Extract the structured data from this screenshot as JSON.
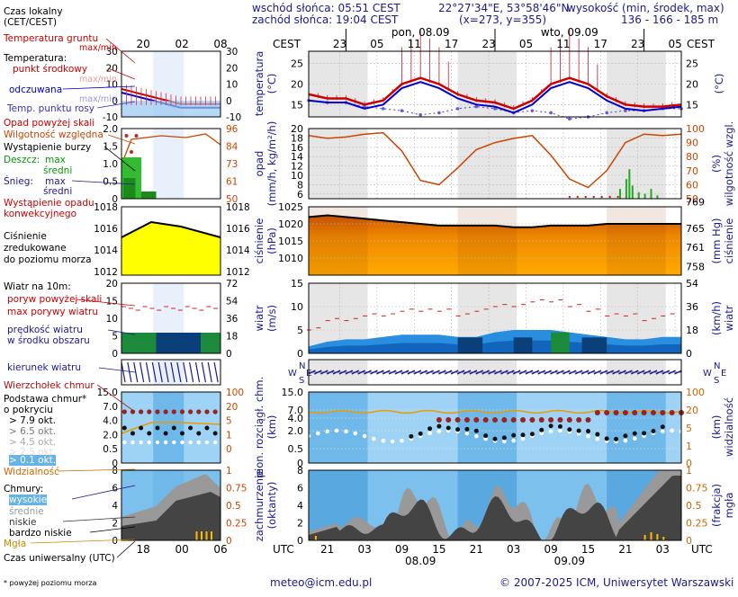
{
  "header": {
    "sunrise": "wschód słońca: 05:51 CEST",
    "sunset": "zachód słońca: 19:04 CEST",
    "coords": "22°27'34\"E, 53°58'46\"N",
    "grid": "(x=273, y=355)",
    "elev_label": "wysokość (min, środek, max)",
    "elev_values": "136 - 166 - 185 m"
  },
  "dates": {
    "day1_top": "pon, 08.09",
    "day2_top": "wto, 09.09",
    "day1_bottom": "08.09",
    "day2_bottom": "09.09",
    "cest": "CEST",
    "utc": "UTC"
  },
  "time_axis": {
    "top_hours": [
      "23",
      "05",
      "11",
      "17",
      "23",
      "05",
      "11",
      "17",
      "23",
      "05"
    ],
    "bottom_hours": [
      "21",
      "03",
      "09",
      "15",
      "21",
      "03",
      "09",
      "15",
      "21",
      "03"
    ],
    "legend_top": [
      "20",
      "02",
      "08"
    ],
    "legend_bottom": [
      "18",
      "00",
      "06"
    ]
  },
  "legend": {
    "time_local": "Czas lokalny",
    "time_local2": "(CET/CEST)",
    "soil_temp": "Temperatura gruntu",
    "maxmin": "max/min",
    "temperature": "Temperatura:",
    "temp_mid": "punkt środkowy",
    "temp_maxmin": "max/min",
    "perceived": "odczuwana",
    "perceived_maxmin": "max/min",
    "dewpoint": "Temp. punktu rosy",
    "precip_above": "Opad powyżej skali",
    "humidity": "Wilgotność względna",
    "storm": "Wystąpienie burzy",
    "rain": "Deszcz:",
    "rain_max": "max",
    "rain_mid": "średni",
    "snow": "Śnieg:",
    "snow_max": "max",
    "snow_mid": "średni",
    "convective": "Wystąpienie opadu",
    "convective2": "konwekcyjnego",
    "pressure": "Ciśnienie",
    "pressure2": "zredukowane",
    "pressure3": "do poziomu morza",
    "wind10": "Wiatr na 10m:",
    "gust_above": "poryw powyżej skali",
    "gust_max": "max porywy wiatru",
    "wind_mean": "prędkość wiatru",
    "wind_mean2": "w środku obszaru",
    "wind_dir": "kierunek wiatru",
    "cloud_top": "Wierzchołek chmur",
    "cloud_base": "Podstawa chmur*",
    "cloud_base2": "o pokryciu",
    "okt79": "> 7.9 okt.",
    "okt65": "> 6.5 okt.",
    "okt45": "> 4.5 okt.",
    "okt25": "> 2.5 okt.",
    "okt01": "> 0.1 okt.",
    "visibility": "Widzialność",
    "clouds": "Chmury:",
    "cl_high": "wysokie",
    "cl_mid": "średnie",
    "cl_low": "niskie",
    "cl_vlow": "bardzo niskie",
    "fog": "Mgła",
    "utc_time": "Czas uniwersalny (UTC)",
    "footnote": "* powyżej poziomu morza"
  },
  "legend_ticks": {
    "temp_left": [
      "30",
      "20",
      "10",
      "0",
      "-10"
    ],
    "temp_right": [
      "30",
      "20",
      "10",
      "0",
      "-10"
    ],
    "precip_left": [
      "2.0",
      "1.5",
      "1.0",
      "0.5",
      "0"
    ],
    "precip_right": [
      "96",
      "84",
      "73",
      "61",
      "50"
    ],
    "press_left": [
      "1018",
      "1016",
      "1014",
      "1012"
    ],
    "press_right": [
      "1018",
      "1016",
      "1014",
      "1012"
    ],
    "wind_left": [
      "20",
      "15",
      "10",
      "5",
      "0"
    ],
    "wind_right": [
      "72",
      "54",
      "36",
      "18",
      "0"
    ],
    "cloud_left": [
      "15.0",
      "7.0",
      "4.0",
      "2.0",
      "0.5",
      "0"
    ],
    "cloud_right": [
      "100",
      "20",
      "5",
      "1",
      "0"
    ],
    "cov_left": [
      "8",
      "6",
      "4",
      "2",
      "0"
    ],
    "cov_right": [
      "1",
      "0.75",
      "0.5",
      "0.25",
      "0"
    ]
  },
  "axis_labels": {
    "temp": "temperatura",
    "temp_unit": "(°C)",
    "precip": "opad",
    "precip_unit": "(mm/h, kg/m²/h)",
    "hum": "(%)",
    "hum2": "wilgotność wzgl.",
    "press": "ciśnienie",
    "press_unit": "(hPa)",
    "press_r": "ciśnienie",
    "press_r_unit": "(mm Hg)",
    "wind": "wiatr",
    "wind_unit": "(m/s)",
    "wind_r": "wiatr",
    "wind_r_unit": "(km/h)",
    "cloud": "pion. rozciągł. chm.",
    "cloud_unit": "(km)",
    "vis": "widzialność",
    "vis_unit": "(km)",
    "cov": "zachmurzenie",
    "cov_unit": "(oktanty)",
    "fog": "mgła",
    "fog_unit": "(frakcja)",
    "compass_n": "N",
    "compass_w": "W",
    "compass_s": "S",
    "compass_e": "E"
  },
  "footer": {
    "email": "meteo@icm.edu.pl",
    "copyright": "© 2007-2025 ICM, Uniwersytet Warszawski"
  },
  "colors": {
    "temp": "#cc0000",
    "perceived": "#0000cc",
    "dew": "#5555cc",
    "humidity": "#cc4400",
    "pressure_line": "#000000",
    "wind_blue": "#0066cc",
    "gust": "#cc2222",
    "night": "#e8e8e8",
    "sky": "#8fc8f0"
  },
  "chart_data": [
    {
      "type": "line",
      "name": "temperatura",
      "x_hours_utc": [
        18,
        21,
        0,
        3,
        6,
        9,
        12,
        15,
        18,
        21,
        0,
        3,
        6,
        9,
        12,
        15,
        18,
        21,
        0,
        3,
        6
      ],
      "series": [
        {
          "name": "punkt środkowy",
          "values": [
            17.5,
            16.5,
            16.5,
            15,
            16,
            20,
            21.5,
            20,
            17.5,
            16,
            15.5,
            14,
            16,
            20,
            21.5,
            20,
            17,
            15,
            14.5,
            14.5,
            15
          ]
        },
        {
          "name": "odczuwana",
          "values": [
            16,
            15.5,
            15.5,
            14,
            15,
            19,
            20.5,
            19,
            16.5,
            15,
            14.5,
            13,
            15,
            19,
            20.5,
            19,
            16,
            14,
            13.5,
            14,
            14.5
          ]
        },
        {
          "name": "Temp. punktu rosy",
          "values": [
            16,
            15.5,
            15.5,
            14.5,
            14,
            13.5,
            12.5,
            13,
            14,
            14.5,
            14,
            13,
            13.5,
            13,
            11.5,
            12,
            13,
            13.5,
            13.5,
            14,
            14
          ]
        }
      ],
      "ylim": [
        12,
        28
      ],
      "yticks": [
        15,
        20,
        25
      ]
    },
    {
      "type": "line",
      "name": "opad/wilgotność",
      "series": [
        {
          "name": "Wilgotność względna",
          "values": [
            95,
            93,
            94,
            96,
            97,
            84,
            63,
            60,
            72,
            85,
            90,
            93,
            95,
            81,
            64,
            58,
            70,
            90,
            96,
            95,
            96
          ]
        }
      ],
      "ylim_precip": [
        0,
        20
      ],
      "ylim_humidity": [
        50,
        100
      ],
      "yticks_precip": [
        6,
        8,
        10,
        12,
        14,
        16,
        18,
        20
      ],
      "yticks_humidity": [
        50,
        60,
        70,
        80,
        90,
        100
      ]
    },
    {
      "type": "line",
      "name": "ciśnienie",
      "series": [
        {
          "name": "Ciśnienie",
          "values": [
            1022,
            1022.5,
            1022,
            1021.5,
            1021,
            1020.5,
            1020,
            1019.5,
            1019.5,
            1019.5,
            1019.5,
            1019,
            1019,
            1019.5,
            1019.5,
            1019.5,
            1020,
            1020,
            1020,
            1020,
            1020
          ]
        }
      ],
      "ylim": [
        1005,
        1025
      ],
      "yticks": [
        1010,
        1015,
        1020,
        1025
      ],
      "yticks_mmhg": [
        758,
        761,
        765,
        769
      ]
    },
    {
      "type": "area",
      "name": "wiatr",
      "series": [
        {
          "name": "prędkość wiatru",
          "values": [
            1.5,
            2.5,
            3,
            3,
            3.5,
            4,
            4,
            4,
            3.5,
            3.5,
            4.5,
            5,
            5,
            5,
            4.5,
            4,
            3.5,
            3,
            3,
            3.5,
            3.5
          ]
        },
        {
          "name": "max porywy wiatru",
          "values": [
            5,
            7,
            7,
            8,
            8,
            9,
            9,
            9,
            8,
            9,
            10,
            10,
            11,
            11,
            10,
            9,
            8,
            8,
            7,
            8,
            8
          ]
        }
      ],
      "ylim": [
        0,
        15
      ],
      "yticks": [
        5,
        10,
        15
      ],
      "yticks_kmh": [
        0,
        18,
        36,
        54
      ]
    },
    {
      "type": "scatter",
      "name": "chmury",
      "ylim": [
        0,
        15
      ],
      "yticks": [
        0.5,
        2.0,
        4.0,
        7.0,
        15.0
      ],
      "yticks_visibility": [
        0,
        1,
        5,
        20,
        100
      ]
    },
    {
      "type": "area",
      "name": "zachmurzenie",
      "ylim": [
        0,
        8
      ],
      "yticks": [
        0,
        2,
        4,
        6,
        8
      ],
      "yticks_fog": [
        0,
        0.25,
        0.5,
        0.75,
        1
      ]
    }
  ]
}
